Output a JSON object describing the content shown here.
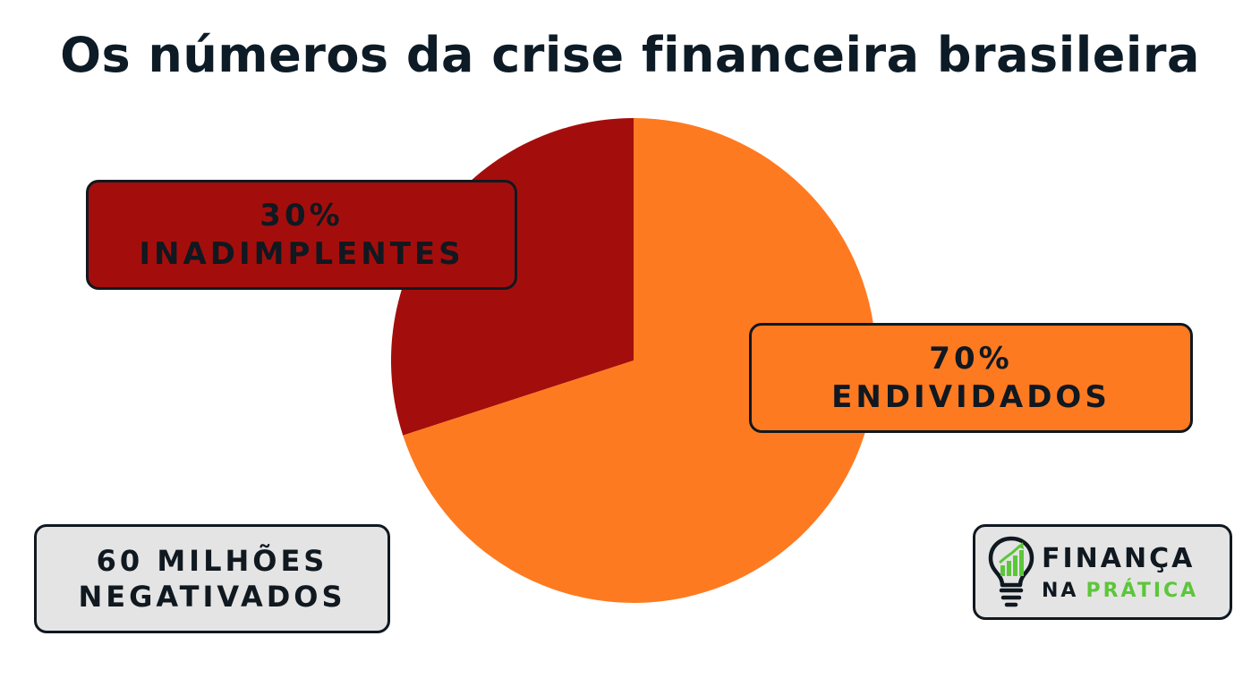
{
  "chart_data": {
    "type": "pie",
    "title": "Os números da crise financeira brasileira",
    "slices": [
      {
        "label_value": "30%",
        "label_text": "INADIMPLENTES",
        "value": 30,
        "color": "#a30e0c",
        "label_bg": "#a30e0c"
      },
      {
        "label_value": "70%",
        "label_text": "ENDIVIDADOS",
        "value": 70,
        "color": "#fe7a20",
        "label_bg": "#fe7a20"
      }
    ],
    "annotation": {
      "line1": "60 MILHÕES",
      "line2": "NEGATIVADOS",
      "bg": "#e4e4e4"
    }
  },
  "brand": {
    "line1": "FINANÇA",
    "line2a": "NA",
    "line2b": "PRÁTICA",
    "accent": "#5cc63a",
    "icon": "lightbulb-chart-icon"
  }
}
